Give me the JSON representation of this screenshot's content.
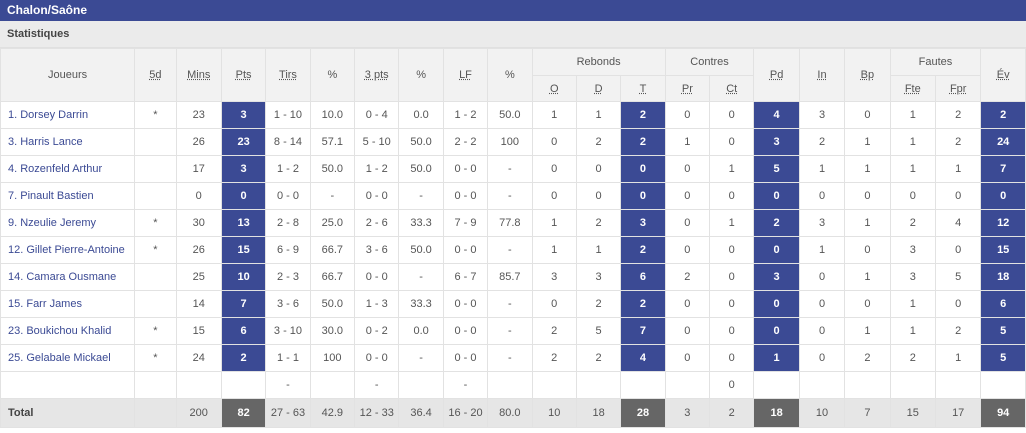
{
  "team": "Chalon/Saône",
  "section": "Statistiques",
  "headers": {
    "joueurs": "Joueurs",
    "cinq": "5d",
    "mins": "Mins",
    "pts": "Pts",
    "tirs": "Tirs",
    "pct1": "%",
    "trois": "3 pts",
    "pct2": "%",
    "lf": "LF",
    "pct3": "%",
    "rebonds": "Rebonds",
    "reb_o": "O",
    "reb_d": "D",
    "reb_t": "T",
    "contres": "Contres",
    "pr": "Pr",
    "ct": "Ct",
    "pd": "Pd",
    "in": "In",
    "bp": "Bp",
    "fautes": "Fautes",
    "fte": "Fte",
    "fpr": "Fpr",
    "ev": "Év"
  },
  "players": [
    {
      "name": "1. Dorsey Darrin",
      "five": "*",
      "mins": "23",
      "pts": "3",
      "tirs": "1 - 10",
      "p1": "10.0",
      "trois": "0 - 4",
      "p2": "0.0",
      "lf": "1 - 2",
      "p3": "50.0",
      "o": "1",
      "d": "1",
      "t": "2",
      "pr": "0",
      "ct": "0",
      "pd": "4",
      "in": "3",
      "bp": "0",
      "fte": "1",
      "fpr": "2",
      "ev": "2"
    },
    {
      "name": "3. Harris Lance",
      "five": "",
      "mins": "26",
      "pts": "23",
      "tirs": "8 - 14",
      "p1": "57.1",
      "trois": "5 - 10",
      "p2": "50.0",
      "lf": "2 - 2",
      "p3": "100",
      "o": "0",
      "d": "2",
      "t": "2",
      "pr": "1",
      "ct": "0",
      "pd": "3",
      "in": "2",
      "bp": "1",
      "fte": "1",
      "fpr": "2",
      "ev": "24"
    },
    {
      "name": "4. Rozenfeld Arthur",
      "five": "",
      "mins": "17",
      "pts": "3",
      "tirs": "1 - 2",
      "p1": "50.0",
      "trois": "1 - 2",
      "p2": "50.0",
      "lf": "0 - 0",
      "p3": "-",
      "o": "0",
      "d": "0",
      "t": "0",
      "pr": "0",
      "ct": "1",
      "pd": "5",
      "in": "1",
      "bp": "1",
      "fte": "1",
      "fpr": "1",
      "ev": "7"
    },
    {
      "name": "7. Pinault Bastien",
      "five": "",
      "mins": "0",
      "pts": "0",
      "tirs": "0 - 0",
      "p1": "-",
      "trois": "0 - 0",
      "p2": "-",
      "lf": "0 - 0",
      "p3": "-",
      "o": "0",
      "d": "0",
      "t": "0",
      "pr": "0",
      "ct": "0",
      "pd": "0",
      "in": "0",
      "bp": "0",
      "fte": "0",
      "fpr": "0",
      "ev": "0"
    },
    {
      "name": "9. Nzeulie Jeremy",
      "five": "*",
      "mins": "30",
      "pts": "13",
      "tirs": "2 - 8",
      "p1": "25.0",
      "trois": "2 - 6",
      "p2": "33.3",
      "lf": "7 - 9",
      "p3": "77.8",
      "o": "1",
      "d": "2",
      "t": "3",
      "pr": "0",
      "ct": "1",
      "pd": "2",
      "in": "3",
      "bp": "1",
      "fte": "2",
      "fpr": "4",
      "ev": "12"
    },
    {
      "name": "12. Gillet Pierre-Antoine",
      "five": "*",
      "mins": "26",
      "pts": "15",
      "tirs": "6 - 9",
      "p1": "66.7",
      "trois": "3 - 6",
      "p2": "50.0",
      "lf": "0 - 0",
      "p3": "-",
      "o": "1",
      "d": "1",
      "t": "2",
      "pr": "0",
      "ct": "0",
      "pd": "0",
      "in": "1",
      "bp": "0",
      "fte": "3",
      "fpr": "0",
      "ev": "15"
    },
    {
      "name": "14. Camara Ousmane",
      "five": "",
      "mins": "25",
      "pts": "10",
      "tirs": "2 - 3",
      "p1": "66.7",
      "trois": "0 - 0",
      "p2": "-",
      "lf": "6 - 7",
      "p3": "85.7",
      "o": "3",
      "d": "3",
      "t": "6",
      "pr": "2",
      "ct": "0",
      "pd": "3",
      "in": "0",
      "bp": "1",
      "fte": "3",
      "fpr": "5",
      "ev": "18"
    },
    {
      "name": "15. Farr James",
      "five": "",
      "mins": "14",
      "pts": "7",
      "tirs": "3 - 6",
      "p1": "50.0",
      "trois": "1 - 3",
      "p2": "33.3",
      "lf": "0 - 0",
      "p3": "-",
      "o": "0",
      "d": "2",
      "t": "2",
      "pr": "0",
      "ct": "0",
      "pd": "0",
      "in": "0",
      "bp": "0",
      "fte": "1",
      "fpr": "0",
      "ev": "6"
    },
    {
      "name": "23. Boukichou Khalid",
      "five": "*",
      "mins": "15",
      "pts": "6",
      "tirs": "3 - 10",
      "p1": "30.0",
      "trois": "0 - 2",
      "p2": "0.0",
      "lf": "0 - 0",
      "p3": "-",
      "o": "2",
      "d": "5",
      "t": "7",
      "pr": "0",
      "ct": "0",
      "pd": "0",
      "in": "0",
      "bp": "1",
      "fte": "1",
      "fpr": "2",
      "ev": "5"
    },
    {
      "name": "25. Gelabale Mickael",
      "five": "*",
      "mins": "24",
      "pts": "2",
      "tirs": "1 - 1",
      "p1": "100",
      "trois": "0 - 0",
      "p2": "-",
      "lf": "0 - 0",
      "p3": "-",
      "o": "2",
      "d": "2",
      "t": "4",
      "pr": "0",
      "ct": "0",
      "pd": "1",
      "in": "0",
      "bp": "2",
      "fte": "2",
      "fpr": "1",
      "ev": "5"
    }
  ],
  "team_row": {
    "tirs": "-",
    "trois": "-",
    "lf": "-",
    "ct": "0"
  },
  "total": {
    "label": "Total",
    "mins": "200",
    "pts": "82",
    "tirs": "27 - 63",
    "p1": "42.9",
    "trois": "12 - 33",
    "p2": "36.4",
    "lf": "16 - 20",
    "p3": "80.0",
    "o": "10",
    "d": "18",
    "t": "28",
    "pr": "3",
    "ct": "2",
    "pd": "18",
    "in": "10",
    "bp": "7",
    "fte": "15",
    "fpr": "17",
    "ev": "94"
  }
}
